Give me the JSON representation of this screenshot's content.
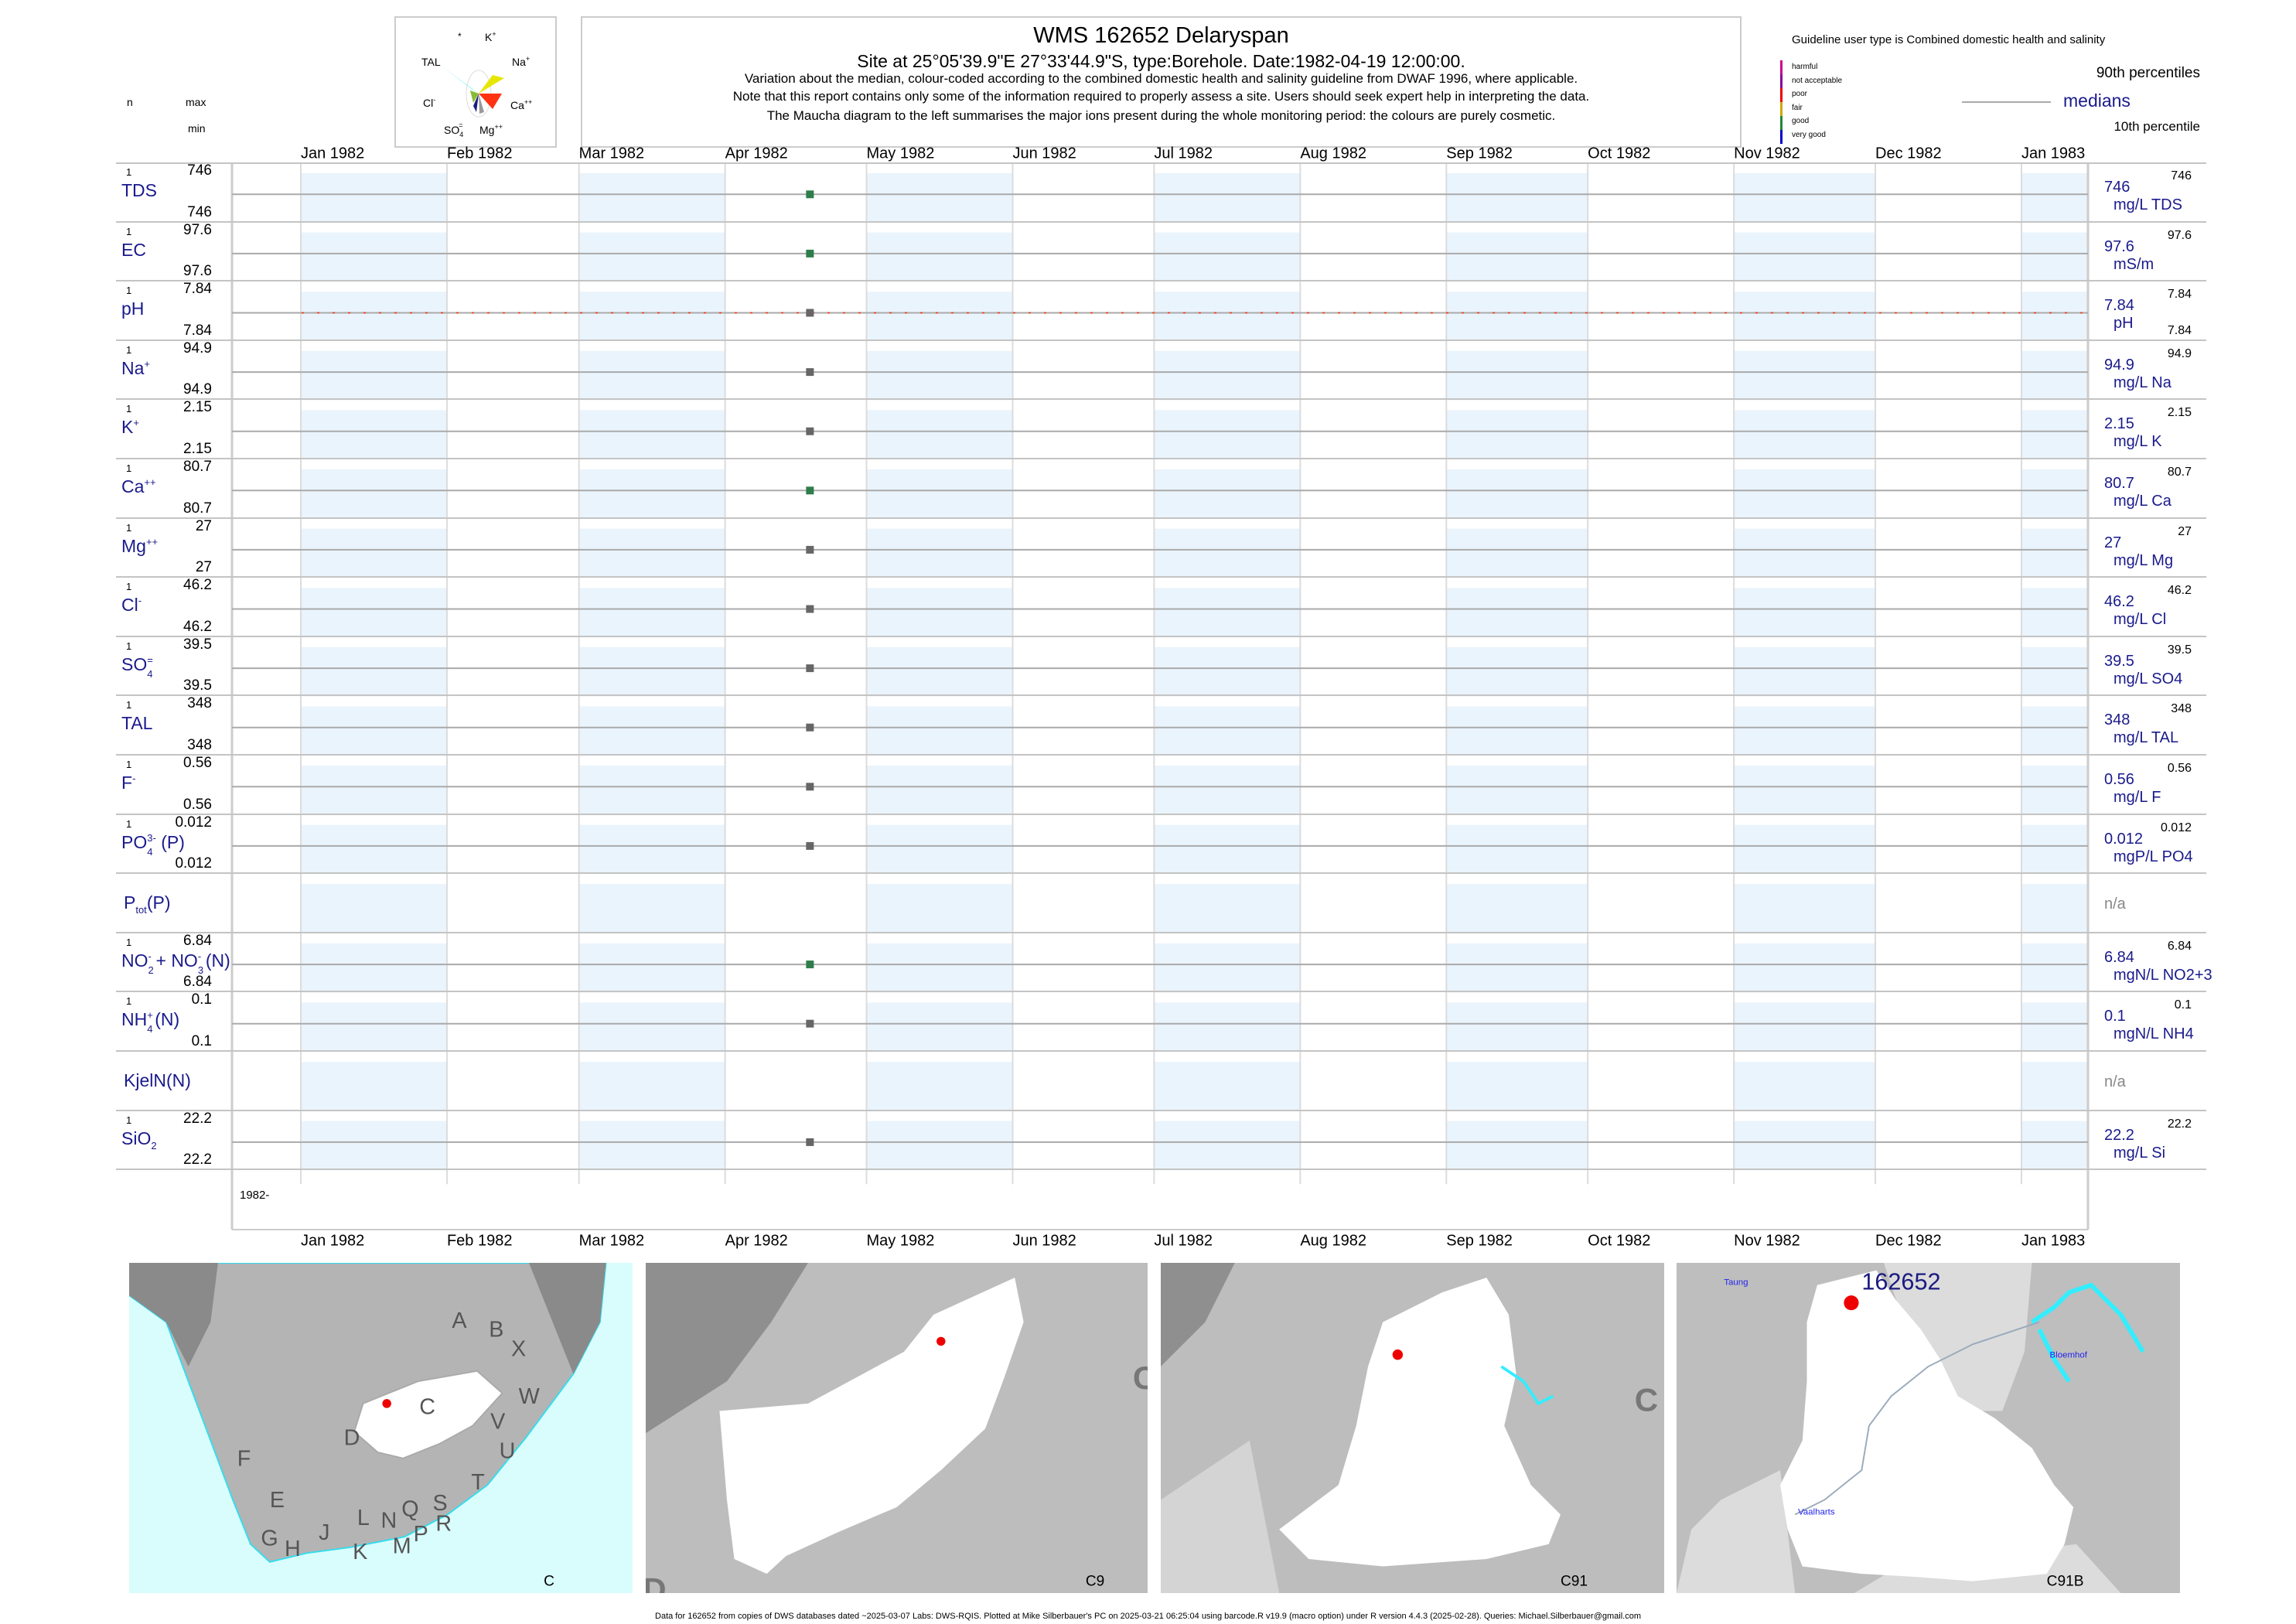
{
  "header": {
    "title": "WMS 162652  Delaryspan",
    "subtitle": "Site at 25°05'39.9\"E 27°33'44.9\"S, type:Borehole. Date:1982-04-19 12:00:00.",
    "note1": "Variation about the median,  colour-coded according to the combined domestic health and salinity guideline from DWAF 1996, where applicable.",
    "note2": "Note that this report contains only some of the information required to properly assess a site. Users should seek expert help in interpreting the data.",
    "note3": "The Maucha diagram to the left summarises the major ions present during the whole monitoring period: the colours are purely cosmetic."
  },
  "maucha": {
    "labels": {
      "star": "*",
      "k": "K",
      "k_sup": "+",
      "tal": "TAL",
      "na": "Na",
      "na_sup": "+",
      "cl": "Cl",
      "cl_sup": "-",
      "ca": "Ca",
      "ca_sup": "++",
      "so4": "SO",
      "so4_sub": "4",
      "so4_sup": "=",
      "mg": "Mg",
      "mg_sup": "++"
    },
    "colors": {
      "tal": "#33eeff",
      "na": "#e6e600",
      "ca": "#ff3311",
      "cl": "#88bb33",
      "so4": "#1a1a80",
      "mg": "#999999"
    }
  },
  "column_headers": {
    "n": "n",
    "max": "max",
    "min": "min"
  },
  "guideline": {
    "title": "Guideline user type is Combined domestic health and salinity",
    "classes": [
      {
        "label": "harmful",
        "color": "#cc0088"
      },
      {
        "label": "not acceptable",
        "color": "#880099"
      },
      {
        "label": "poor",
        "color": "#ee0000"
      },
      {
        "label": "fair",
        "color": "#ccaa00"
      },
      {
        "label": "good",
        "color": "#228833"
      },
      {
        "label": "very good",
        "color": "#0000cc"
      }
    ],
    "p90": "90th percentiles",
    "medians": "medians",
    "p10": "10th percentile"
  },
  "chart_data": {
    "type": "scatter",
    "x_axis": {
      "ticks": [
        "Jan 1982",
        "Feb 1982",
        "Mar 1982",
        "Apr 1982",
        "May 1982",
        "Jun 1982",
        "Jul 1982",
        "Aug 1982",
        "Sep 1982",
        "Oct 1982",
        "Nov 1982",
        "Dec 1982",
        "Jan 1983"
      ],
      "tick_dates": [
        "1982-01-01",
        "1982-02-01",
        "1982-03-01",
        "1982-04-01",
        "1982-05-01",
        "1982-06-01",
        "1982-07-01",
        "1982-08-01",
        "1982-09-01",
        "1982-10-01",
        "1982-11-01",
        "1982-12-01",
        "1983-01-01"
      ],
      "range": [
        "1981-12-17",
        "1983-01-15"
      ],
      "year_label": "1982-"
    },
    "shaded_months": [
      "1982-01",
      "1982-03",
      "1982-05",
      "1982-07",
      "1982-09",
      "1982-11",
      "1983-01"
    ],
    "sample_date": "1982-04-19",
    "series": [
      {
        "name": "TDS",
        "parts": [
          {
            "t": "TDS"
          }
        ],
        "n": "1",
        "max": "746",
        "min": "746",
        "median": "746",
        "unit": "mg/L TDS",
        "rmax": "746",
        "value": 746,
        "dot": "#2e7d4a"
      },
      {
        "name": "EC",
        "parts": [
          {
            "t": "EC"
          }
        ],
        "n": "1",
        "max": "97.6",
        "min": "97.6",
        "median": "97.6",
        "unit": "mS/m",
        "rmax": "97.6",
        "value": 97.6,
        "dot": "#2e7d4a"
      },
      {
        "name": "pH",
        "parts": [
          {
            "t": "pH"
          }
        ],
        "n": "1",
        "max": "7.84",
        "min": "7.84",
        "median": "7.84",
        "unit": "pH",
        "rmax": "7.84",
        "rmin": "7.84",
        "value": 7.84,
        "dot": "#666666",
        "guide_line": "#ee4422"
      },
      {
        "name": "Na",
        "parts": [
          {
            "t": "Na"
          },
          {
            "sup": "+"
          }
        ],
        "n": "1",
        "max": "94.9",
        "min": "94.9",
        "median": "94.9",
        "unit": "mg/L Na",
        "rmax": "94.9",
        "value": 94.9,
        "dot": "#666666"
      },
      {
        "name": "K",
        "parts": [
          {
            "t": "K"
          },
          {
            "sup": "+"
          }
        ],
        "n": "1",
        "max": "2.15",
        "min": "2.15",
        "median": "2.15",
        "unit": "mg/L K",
        "rmax": "2.15",
        "value": 2.15,
        "dot": "#666666"
      },
      {
        "name": "Ca",
        "parts": [
          {
            "t": "Ca"
          },
          {
            "sup": "++"
          }
        ],
        "n": "1",
        "max": "80.7",
        "min": "80.7",
        "median": "80.7",
        "unit": "mg/L Ca",
        "rmax": "80.7",
        "value": 80.7,
        "dot": "#2e7d4a"
      },
      {
        "name": "Mg",
        "parts": [
          {
            "t": "Mg"
          },
          {
            "sup": "++"
          }
        ],
        "n": "1",
        "max": "27",
        "min": "27",
        "median": "27",
        "unit": "mg/L Mg",
        "rmax": "27",
        "value": 27,
        "dot": "#666666"
      },
      {
        "name": "Cl",
        "parts": [
          {
            "t": "Cl"
          },
          {
            "sup": "-"
          }
        ],
        "n": "1",
        "max": "46.2",
        "min": "46.2",
        "median": "46.2",
        "unit": "mg/L Cl",
        "rmax": "46.2",
        "value": 46.2,
        "dot": "#666666"
      },
      {
        "name": "SO4",
        "parts": [
          {
            "t": "SO"
          },
          {
            "sup": "=",
            "sub": "4"
          }
        ],
        "n": "1",
        "max": "39.5",
        "min": "39.5",
        "median": "39.5",
        "unit": "mg/L SO4",
        "rmax": "39.5",
        "value": 39.5,
        "dot": "#666666"
      },
      {
        "name": "TAL",
        "parts": [
          {
            "t": "TAL"
          }
        ],
        "n": "1",
        "max": "348",
        "min": "348",
        "median": "348",
        "unit": "mg/L TAL",
        "rmax": "348",
        "value": 348,
        "dot": "#666666"
      },
      {
        "name": "F",
        "parts": [
          {
            "t": "F"
          },
          {
            "sup": "-"
          }
        ],
        "n": "1",
        "max": "0.56",
        "min": "0.56",
        "median": "0.56",
        "unit": "mg/L F",
        "rmax": "0.56",
        "value": 0.56,
        "dot": "#666666"
      },
      {
        "name": "PO4",
        "parts": [
          {
            "t": "PO"
          },
          {
            "sup": "3-",
            "sub": "4"
          },
          {
            "t": "(P)"
          }
        ],
        "n": "1",
        "max": "0.012",
        "min": "0.012",
        "median": "0.012",
        "unit": "mgP/L PO4",
        "rmax": "0.012",
        "value": 0.012,
        "dot": "#666666"
      },
      {
        "name": "Ptot",
        "parts": [
          {
            "t": "P"
          },
          {
            "sub": "tot"
          },
          {
            "t": "(P)"
          }
        ],
        "na": "n/a"
      },
      {
        "name": "NO2+NO3",
        "parts": [
          {
            "t": "NO"
          },
          {
            "sup": "-",
            "sub": "2"
          },
          {
            "t": "+ NO"
          },
          {
            "sup": "-",
            "sub": "3"
          },
          {
            "t": "(N)"
          }
        ],
        "n": "1",
        "max": "6.84",
        "min": "6.84",
        "median": "6.84",
        "unit": "mgN/L NO2+3",
        "rmax": "6.84",
        "value": 6.84,
        "dot": "#2e7d4a"
      },
      {
        "name": "NH4",
        "parts": [
          {
            "t": "NH"
          },
          {
            "sup": "+",
            "sub": "4"
          },
          {
            "t": "(N)"
          }
        ],
        "n": "1",
        "max": "0.1",
        "min": "0.1",
        "median": "0.1",
        "unit": "mgN/L NH4",
        "rmax": "0.1",
        "value": 0.1,
        "dot": "#666666"
      },
      {
        "name": "KjelN",
        "parts": [
          {
            "t": "KjelN(N)"
          }
        ],
        "na": "n/a"
      },
      {
        "name": "SiO2",
        "parts": [
          {
            "t": "SiO"
          },
          {
            "sub": "2"
          }
        ],
        "n": "1",
        "max": "22.2",
        "min": "22.2",
        "median": "22.2",
        "unit": "mg/L Si",
        "rmax": "22.2",
        "value": 22.2,
        "dot": "#666666"
      }
    ]
  },
  "maps": [
    {
      "caption": "C",
      "region_letters": [
        "A",
        "B",
        "X",
        "W",
        "C",
        "V",
        "D",
        "U",
        "F",
        "T",
        "E",
        "S",
        "L",
        "N",
        "Q",
        "R",
        "J",
        "P",
        "G",
        "H",
        "M",
        "K"
      ]
    },
    {
      "caption": "C9",
      "edge_letters": [
        "C",
        "D"
      ]
    },
    {
      "caption": "C91",
      "edge_letters": [
        "C"
      ]
    },
    {
      "caption": "C91B",
      "site_label": "162652",
      "places": [
        "Taung",
        "Bloemhof",
        "Vaalharts"
      ]
    }
  ],
  "footer": "Data for 162652 from copies of DWS databases dated ~2025-03-07 Labs: DWS-RQIS. Plotted at Mike Silberbauer's PC on 2025-03-21 06:25:04 using barcode.R v19.9 (macro option) under R version 4.4.3 (2025-02-28). Queries: Michael.Silberbauer@gmail.com"
}
